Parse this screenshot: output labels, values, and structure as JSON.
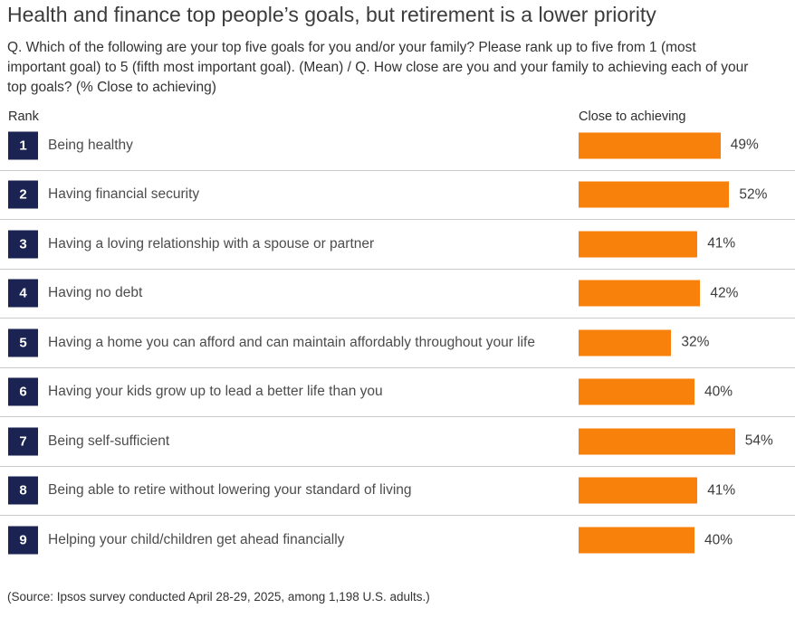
{
  "header": {
    "title": "Health and finance top people’s goals, but retirement is a lower priority",
    "question": "Q. Which of the following are your top five goals for you and/or your family? Please rank up to five from 1 (most important goal) to 5 (fifth most important goal). (Mean) / Q. How close are you and your family to achieving each of your top goals? (% Close to achieving)"
  },
  "columns": {
    "rank_header": "Rank",
    "bar_header": "Close to achieving"
  },
  "source_note": "(Source: Ipsos survey conducted April 28-29, 2025, among 1,198 U.S. adults.)",
  "colors": {
    "bar": "#f8810c",
    "rank_badge": "#1a2352",
    "separator": "#cccccc",
    "text": "#3c3c3c"
  },
  "chart_data": {
    "type": "bar",
    "orientation": "horizontal",
    "title": "Health and finance top people’s goals, but retirement is a lower priority",
    "series_name": "Close to achieving",
    "ranks": [
      "1",
      "2",
      "3",
      "4",
      "5",
      "6",
      "7",
      "8",
      "9"
    ],
    "categories": [
      "Being healthy",
      "Having financial security",
      "Having a loving relationship with a spouse or partner",
      "Having no debt",
      "Having a home you can afford and can maintain affordably throughout your life",
      "Having your kids grow up to lead a better life than you",
      "Being self-sufficient",
      "Being able to retire without lowering your standard of living",
      "Helping your child/children get ahead financially"
    ],
    "values": [
      49,
      52,
      41,
      42,
      32,
      40,
      54,
      41,
      40
    ],
    "value_labels": [
      "49%",
      "52%",
      "41%",
      "42%",
      "32%",
      "40%",
      "54%",
      "41%",
      "40%"
    ],
    "value_suffix": "%",
    "xlabel": "",
    "ylabel": "Rank",
    "xlim": [
      0,
      60
    ],
    "grid": false,
    "legend": false,
    "data_labels": true
  }
}
